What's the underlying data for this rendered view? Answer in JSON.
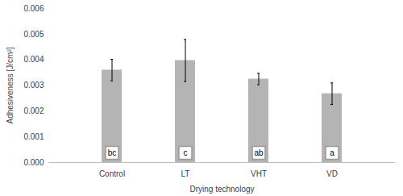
{
  "chart_data": {
    "type": "bar",
    "x_label": "Drying technology",
    "y_label": "Adhesiveness [J/cm²]",
    "categories": [
      "Control",
      "LT",
      "VHT",
      "VD"
    ],
    "values": [
      0.0036,
      0.00397,
      0.00325,
      0.00268
    ],
    "errors": [
      0.00042,
      0.00082,
      0.00022,
      0.00042
    ],
    "annotations": [
      "bc",
      "c",
      "ab",
      "a"
    ],
    "color": "#b4b4b4",
    "ylim": [
      0,
      0.006
    ],
    "yticks": [
      {
        "value": 0,
        "label": "0.000"
      },
      {
        "value": 0.001,
        "label": "0.001"
      },
      {
        "value": 0.002,
        "label": "0.002"
      },
      {
        "value": 0.003,
        "label": "0.003"
      },
      {
        "value": 0.004,
        "label": "0.004"
      },
      {
        "value": 0.005,
        "label": "0.005"
      },
      {
        "value": 0.006,
        "label": "0.006"
      }
    ],
    "grid": false
  }
}
